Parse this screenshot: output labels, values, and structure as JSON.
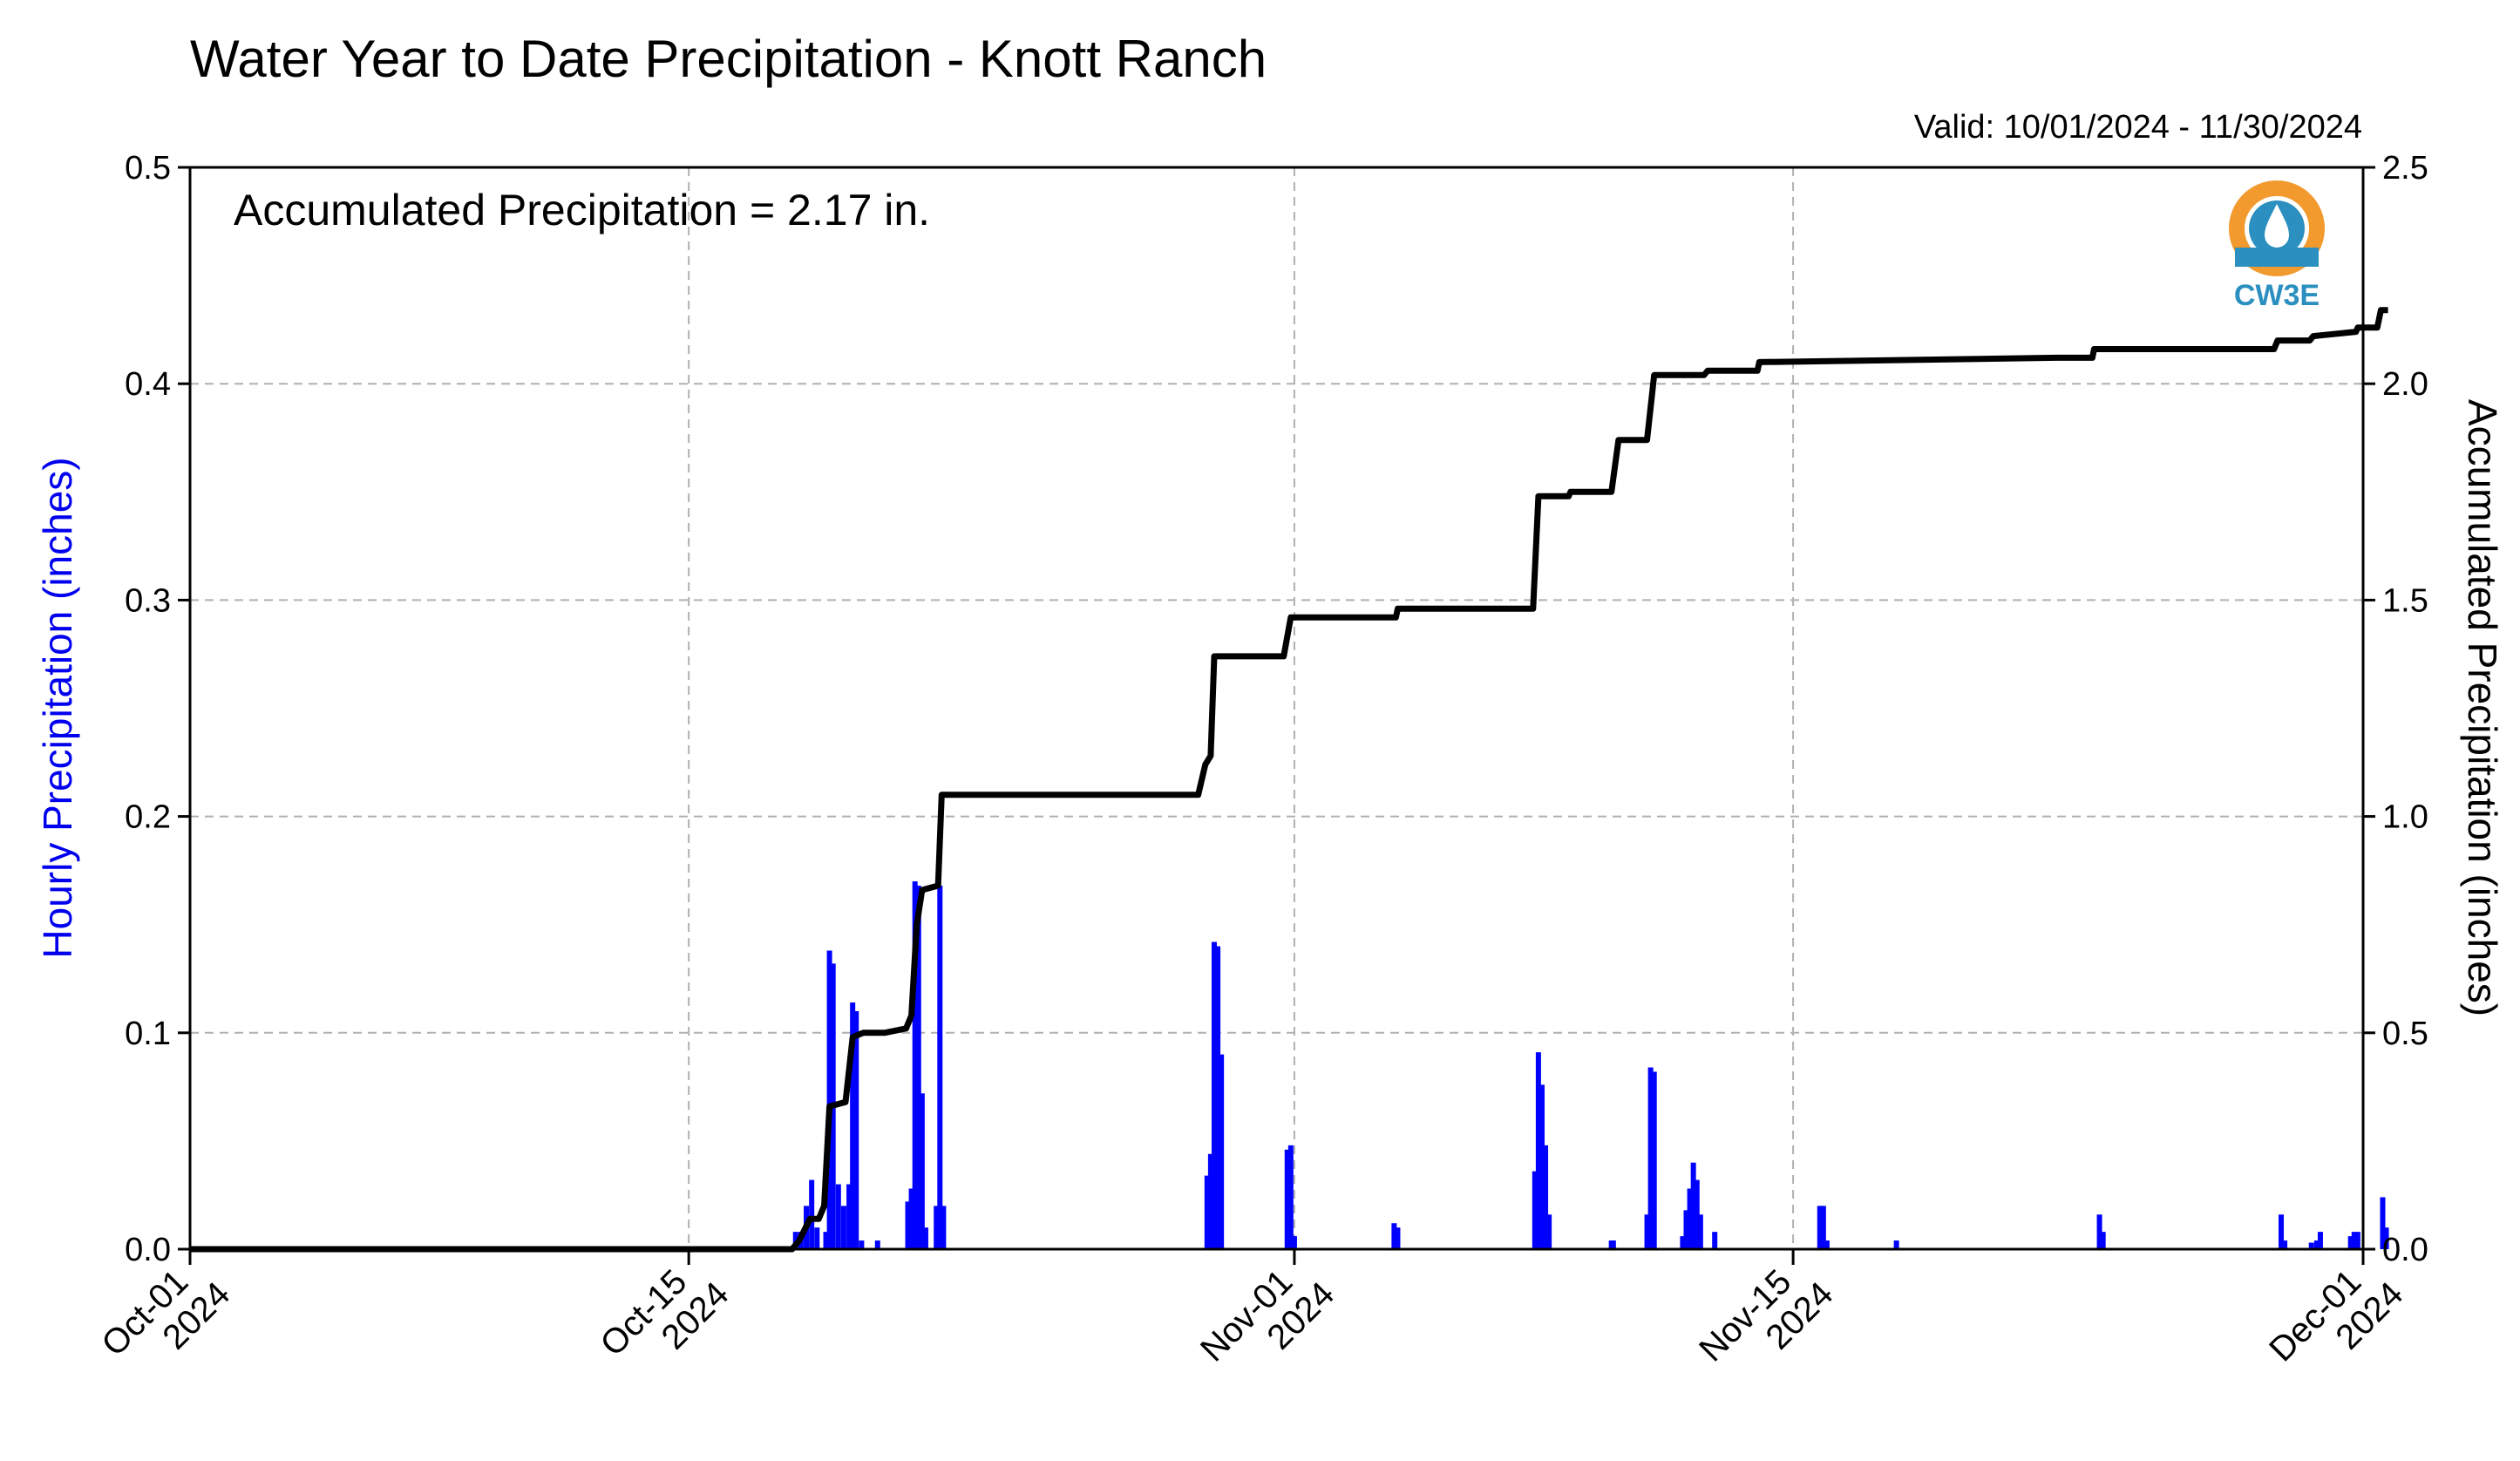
{
  "chart_data": {
    "type": "bar",
    "title": "Water Year to Date Precipitation - Knott Ranch",
    "valid_text": "Valid: 10/01/2024 - 11/30/2024",
    "annotation": "Accumulated Precipitation = 2.17 in.",
    "ylabel_left": "Hourly Precipitation (inches)",
    "ylabel_right": "Accumulated Precipitation (inches)",
    "ylim_left": [
      0,
      0.5
    ],
    "ylim_right": [
      0,
      2.5
    ],
    "xlim_days": [
      0,
      61
    ],
    "grid": true,
    "left_ticks": [
      "0.0",
      "0.1",
      "0.2",
      "0.3",
      "0.4",
      "0.5"
    ],
    "right_ticks": [
      "0.0",
      "0.5",
      "1.0",
      "1.5",
      "2.0",
      "2.5"
    ],
    "x_ticks": [
      {
        "day": 0,
        "line1": "Oct-01",
        "line2": "2024"
      },
      {
        "day": 14,
        "line1": "Oct-15",
        "line2": "2024"
      },
      {
        "day": 31,
        "line1": "Nov-01",
        "line2": "2024"
      },
      {
        "day": 45,
        "line1": "Nov-15",
        "line2": "2024"
      },
      {
        "day": 61,
        "line1": "Dec-01",
        "line2": "2024"
      }
    ],
    "series": [
      {
        "name": "Hourly Precipitation",
        "color": "#0000ff",
        "points": [
          [
            17.0,
            0.008
          ],
          [
            17.15,
            0.008
          ],
          [
            17.3,
            0.02
          ],
          [
            17.45,
            0.032
          ],
          [
            17.6,
            0.01
          ],
          [
            17.85,
            0.008
          ],
          [
            17.95,
            0.138
          ],
          [
            18.05,
            0.132
          ],
          [
            18.2,
            0.03
          ],
          [
            18.35,
            0.02
          ],
          [
            18.5,
            0.03
          ],
          [
            18.6,
            0.114
          ],
          [
            18.7,
            0.11
          ],
          [
            18.85,
            0.004
          ],
          [
            19.3,
            0.004
          ],
          [
            20.15,
            0.022
          ],
          [
            20.25,
            0.028
          ],
          [
            20.35,
            0.17
          ],
          [
            20.45,
            0.168
          ],
          [
            20.55,
            0.072
          ],
          [
            20.65,
            0.01
          ],
          [
            20.95,
            0.02
          ],
          [
            21.05,
            0.168
          ],
          [
            21.15,
            0.02
          ],
          [
            28.55,
            0.034
          ],
          [
            28.65,
            0.044
          ],
          [
            28.75,
            0.142
          ],
          [
            28.85,
            0.14
          ],
          [
            28.95,
            0.09
          ],
          [
            30.8,
            0.046
          ],
          [
            30.9,
            0.048
          ],
          [
            31.0,
            0.006
          ],
          [
            33.8,
            0.012
          ],
          [
            33.9,
            0.01
          ],
          [
            37.75,
            0.036
          ],
          [
            37.85,
            0.091
          ],
          [
            37.95,
            0.076
          ],
          [
            38.05,
            0.048
          ],
          [
            38.15,
            0.016
          ],
          [
            39.9,
            0.004
          ],
          [
            39.95,
            0.004
          ],
          [
            39.95,
            0.004
          ],
          [
            40.9,
            0.016
          ],
          [
            41.0,
            0.084
          ],
          [
            41.1,
            0.082
          ],
          [
            41.9,
            0.006
          ],
          [
            42.0,
            0.018
          ],
          [
            42.1,
            0.028
          ],
          [
            42.2,
            0.04
          ],
          [
            42.3,
            0.032
          ],
          [
            42.4,
            0.016
          ],
          [
            42.8,
            0.008
          ],
          [
            45.75,
            0.02
          ],
          [
            45.85,
            0.02
          ],
          [
            45.95,
            0.004
          ],
          [
            47.9,
            0.004
          ],
          [
            53.6,
            0.016
          ],
          [
            53.7,
            0.008
          ],
          [
            58.7,
            0.016
          ],
          [
            58.8,
            0.004
          ],
          [
            59.55,
            0.003
          ],
          [
            59.7,
            0.004
          ],
          [
            59.8,
            0.008
          ],
          [
            60.65,
            0.006
          ],
          [
            60.75,
            0.008
          ],
          [
            60.85,
            0.008
          ],
          [
            61.55,
            0.024
          ],
          [
            61.65,
            0.01
          ]
        ]
      },
      {
        "name": "Accumulated Precipitation",
        "color": "#000000",
        "points": [
          [
            0,
            0.0
          ],
          [
            16.9,
            0.0
          ],
          [
            17.1,
            0.02
          ],
          [
            17.4,
            0.07
          ],
          [
            17.65,
            0.07
          ],
          [
            17.8,
            0.1
          ],
          [
            17.95,
            0.33
          ],
          [
            18.4,
            0.34
          ],
          [
            18.6,
            0.49
          ],
          [
            18.9,
            0.5
          ],
          [
            19.5,
            0.5
          ],
          [
            20.1,
            0.51
          ],
          [
            20.25,
            0.54
          ],
          [
            20.4,
            0.75
          ],
          [
            20.55,
            0.83
          ],
          [
            21.0,
            0.84
          ],
          [
            21.1,
            1.05
          ],
          [
            28.3,
            1.05
          ],
          [
            28.5,
            1.12
          ],
          [
            28.65,
            1.14
          ],
          [
            28.75,
            1.37
          ],
          [
            30.7,
            1.37
          ],
          [
            30.9,
            1.46
          ],
          [
            33.85,
            1.46
          ],
          [
            33.9,
            1.48
          ],
          [
            37.7,
            1.48
          ],
          [
            37.85,
            1.74
          ],
          [
            38.7,
            1.74
          ],
          [
            38.75,
            1.75
          ],
          [
            39.9,
            1.75
          ],
          [
            40.1,
            1.87
          ],
          [
            40.9,
            1.87
          ],
          [
            41.1,
            2.02
          ],
          [
            41.8,
            2.02
          ],
          [
            41.9,
            2.02
          ],
          [
            42.5,
            2.02
          ],
          [
            42.6,
            2.03
          ],
          [
            44.0,
            2.03
          ],
          [
            44.05,
            2.05
          ],
          [
            52.4,
            2.06
          ],
          [
            53.4,
            2.06
          ],
          [
            53.45,
            2.08
          ],
          [
            58.5,
            2.08
          ],
          [
            58.6,
            2.1
          ],
          [
            59.5,
            2.1
          ],
          [
            59.6,
            2.11
          ],
          [
            60.8,
            2.12
          ],
          [
            60.85,
            2.13
          ],
          [
            61.4,
            2.13
          ],
          [
            61.5,
            2.17
          ],
          [
            61.7,
            2.17
          ]
        ]
      }
    ]
  },
  "logo": {
    "text": "CW3E"
  }
}
